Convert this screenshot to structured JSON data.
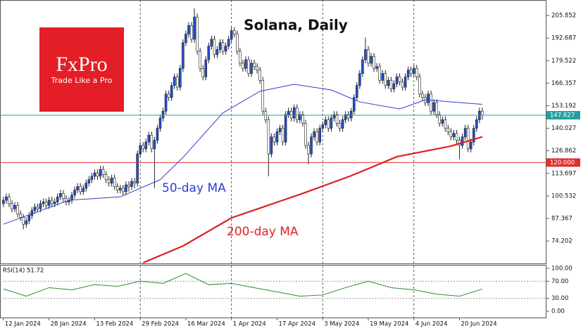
{
  "chart_data": {
    "type": "candlestick",
    "title": "Solana, Daily",
    "logo_name": "FxPro",
    "logo_tagline": "Trade Like a Pro",
    "up_color": "#1f4fd1",
    "down_color": "#ffffff",
    "open": [
      96,
      98,
      100,
      96,
      93,
      95,
      90,
      88,
      84,
      86,
      89,
      92,
      94,
      93,
      96,
      97,
      95,
      98,
      96,
      97,
      100,
      102,
      99,
      97,
      98,
      101,
      104,
      106,
      103,
      105,
      108,
      110,
      112,
      114,
      112,
      116,
      113,
      110,
      108,
      111,
      106,
      104,
      105,
      103,
      107,
      106,
      109,
      108,
      125,
      130,
      128,
      132,
      136,
      128,
      133,
      140,
      146,
      150,
      160,
      158,
      165,
      170,
      164,
      175,
      190,
      195,
      200,
      192,
      205,
      185,
      175,
      170,
      180,
      188,
      192,
      183,
      186,
      190,
      185,
      188,
      192,
      197,
      195,
      185,
      178,
      175,
      180,
      172,
      178,
      176,
      174,
      168,
      150,
      145,
      125,
      135,
      132,
      138,
      140,
      132,
      148,
      150,
      146,
      152,
      145,
      148,
      143,
      130,
      125,
      135,
      138,
      132,
      140,
      142,
      145,
      140,
      146,
      148,
      143,
      140,
      145,
      148,
      146,
      150,
      158,
      165,
      172,
      180,
      186,
      178,
      182,
      175,
      176,
      168,
      172,
      165,
      168,
      163,
      166,
      170,
      167,
      164,
      170,
      174,
      172,
      175,
      170,
      160,
      158,
      155,
      160,
      150,
      155,
      148,
      143,
      145,
      140,
      138,
      135,
      137,
      133,
      130,
      135,
      140,
      128,
      132,
      140,
      145,
      150
    ],
    "high": [
      100,
      102,
      102,
      98,
      97,
      97,
      92,
      90,
      88,
      91,
      94,
      96,
      96,
      98,
      99,
      99,
      100,
      100,
      99,
      102,
      104,
      104,
      101,
      100,
      103,
      106,
      108,
      108,
      107,
      110,
      112,
      114,
      116,
      116,
      118,
      118,
      115,
      112,
      113,
      113,
      108,
      107,
      107,
      109,
      109,
      111,
      111,
      127,
      132,
      132,
      134,
      138,
      138,
      135,
      142,
      148,
      152,
      162,
      162,
      167,
      172,
      172,
      177,
      192,
      197,
      202,
      202,
      210,
      207,
      187,
      177,
      182,
      190,
      194,
      194,
      188,
      192,
      192,
      190,
      194,
      199,
      199,
      197,
      187,
      180,
      182,
      182,
      180,
      180,
      178,
      176,
      170,
      152,
      147,
      137,
      137,
      140,
      142,
      142,
      150,
      152,
      152,
      154,
      154,
      150,
      150,
      145,
      132,
      137,
      140,
      140,
      142,
      144,
      147,
      147,
      148,
      150,
      150,
      145,
      147,
      150,
      150,
      152,
      160,
      167,
      174,
      182,
      193,
      188,
      184,
      184,
      178,
      178,
      174,
      174,
      170,
      170,
      168,
      172,
      172,
      169,
      172,
      176,
      176,
      177,
      177,
      172,
      162,
      160,
      162,
      162,
      157,
      157,
      150,
      147,
      147,
      142,
      140,
      139,
      139,
      135,
      137,
      142,
      142,
      134,
      142,
      147,
      152,
      152
    ],
    "low": [
      94,
      96,
      94,
      91,
      91,
      88,
      86,
      81,
      82,
      84,
      87,
      90,
      91,
      91,
      94,
      93,
      93,
      94,
      94,
      95,
      98,
      97,
      95,
      95,
      96,
      99,
      102,
      101,
      101,
      103,
      106,
      108,
      110,
      110,
      110,
      111,
      108,
      106,
      106,
      104,
      102,
      102,
      101,
      101,
      103,
      104,
      105,
      106,
      123,
      126,
      126,
      130,
      126,
      105,
      131,
      138,
      144,
      148,
      156,
      156,
      163,
      162,
      162,
      173,
      188,
      193,
      190,
      190,
      183,
      173,
      168,
      168,
      178,
      186,
      181,
      181,
      184,
      183,
      183,
      186,
      190,
      193,
      183,
      176,
      173,
      173,
      170,
      170,
      174,
      172,
      166,
      148,
      143,
      112,
      123,
      130,
      130,
      136,
      130,
      130,
      146,
      144,
      144,
      143,
      143,
      141,
      128,
      119,
      123,
      133,
      130,
      130,
      138,
      140,
      138,
      138,
      144,
      141,
      138,
      138,
      143,
      144,
      144,
      148,
      156,
      163,
      170,
      178,
      176,
      176,
      173,
      173,
      166,
      166,
      163,
      163,
      161,
      161,
      164,
      165,
      162,
      162,
      168,
      170,
      170,
      168,
      158,
      156,
      153,
      153,
      148,
      148,
      146,
      141,
      141,
      138,
      136,
      133,
      133,
      131,
      122,
      128,
      133,
      126,
      126,
      130,
      138,
      143,
      145
    ],
    "close": [
      98,
      100,
      96,
      93,
      95,
      90,
      88,
      84,
      86,
      89,
      92,
      94,
      93,
      96,
      97,
      95,
      98,
      96,
      97,
      100,
      102,
      99,
      97,
      98,
      101,
      104,
      106,
      103,
      105,
      108,
      110,
      112,
      114,
      112,
      116,
      113,
      110,
      108,
      111,
      106,
      104,
      105,
      103,
      107,
      106,
      109,
      108,
      125,
      130,
      128,
      132,
      136,
      128,
      133,
      140,
      146,
      150,
      160,
      158,
      165,
      170,
      164,
      175,
      190,
      195,
      200,
      192,
      205,
      185,
      175,
      170,
      180,
      188,
      192,
      183,
      186,
      190,
      185,
      188,
      192,
      197,
      195,
      185,
      178,
      175,
      180,
      172,
      178,
      176,
      174,
      168,
      150,
      145,
      125,
      135,
      132,
      138,
      140,
      132,
      148,
      150,
      146,
      152,
      145,
      148,
      143,
      130,
      125,
      135,
      138,
      132,
      140,
      142,
      145,
      140,
      146,
      148,
      143,
      140,
      145,
      148,
      146,
      150,
      158,
      165,
      172,
      180,
      186,
      178,
      182,
      175,
      176,
      168,
      172,
      165,
      168,
      163,
      166,
      170,
      167,
      164,
      170,
      174,
      172,
      175,
      170,
      160,
      158,
      155,
      160,
      150,
      155,
      148,
      143,
      145,
      140,
      138,
      135,
      137,
      133,
      130,
      135,
      140,
      128,
      132,
      140,
      145,
      150,
      147.6
    ],
    "xlim": [
      -1.2,
      190.5
    ],
    "ylim": [
      61.1,
      214.9
    ],
    "yticks": [
      205.852,
      192.687,
      179.522,
      166.357,
      153.192,
      140.027,
      126.862,
      113.697,
      100.532,
      87.367,
      74.202
    ],
    "xticks": [
      {
        "value": 0,
        "label": "12 Jan 2024"
      },
      {
        "value": 16,
        "label": "28 Jan 2024"
      },
      {
        "value": 32,
        "label": "13 Feb 2024"
      },
      {
        "value": 48,
        "label": "29 Feb 2024"
      },
      {
        "value": 64,
        "label": "16 Mar 2024"
      },
      {
        "value": 80,
        "label": "1 Apr 2024"
      },
      {
        "value": 96,
        "label": "17 Apr 2024"
      },
      {
        "value": 112,
        "label": "3 May 2024"
      },
      {
        "value": 128,
        "label": "19 May 2024"
      },
      {
        "value": 144,
        "label": "4 Jun 2024"
      },
      {
        "value": 160,
        "label": "20 Jun 2024"
      }
    ],
    "hlines": [
      {
        "value": 147.627,
        "color": "#20a0a0"
      },
      {
        "value": 120,
        "label": "120.000",
        "color": "#e03030"
      }
    ],
    "series": [
      {
        "name": "50-day MA",
        "color": "#2a3fd0",
        "x": [
          0,
          23,
          41,
          55,
          63,
          77,
          90,
          102,
          115,
          125,
          139,
          148,
          168
        ],
        "values": [
          84,
          98,
          100,
          110,
          123,
          149,
          161.6,
          165.7,
          162.4,
          155.4,
          151.3,
          156.6,
          154
        ]
      },
      {
        "name": "200-day MA",
        "color": "#e02020",
        "x": [
          49,
          63,
          80,
          105,
          122,
          138,
          157,
          168
        ],
        "values": [
          61.5,
          71.3,
          87.7,
          102,
          112.3,
          123.4,
          129.6,
          135
        ]
      }
    ],
    "rsi": {
      "label": "RSI(14) 51.72",
      "color": "#2e8b2e",
      "x": [
        0,
        8,
        16,
        24,
        32,
        40,
        48,
        56,
        64,
        72,
        80,
        88,
        96,
        104,
        112,
        120,
        128,
        136,
        144,
        152,
        160,
        168
      ],
      "values": [
        52,
        35,
        55,
        50,
        62,
        58,
        70,
        65,
        88,
        62,
        65,
        55,
        45,
        35,
        38,
        55,
        70,
        55,
        50,
        40,
        35,
        51.72
      ],
      "ylim": [
        -14.8,
        106.6
      ],
      "yticks": [
        {
          "value": 100,
          "label": "100.00"
        },
        {
          "value": 70,
          "label": "70.00"
        },
        {
          "value": 30,
          "label": "30.00"
        },
        {
          "value": 0,
          "label": "0.00"
        }
      ]
    }
  }
}
